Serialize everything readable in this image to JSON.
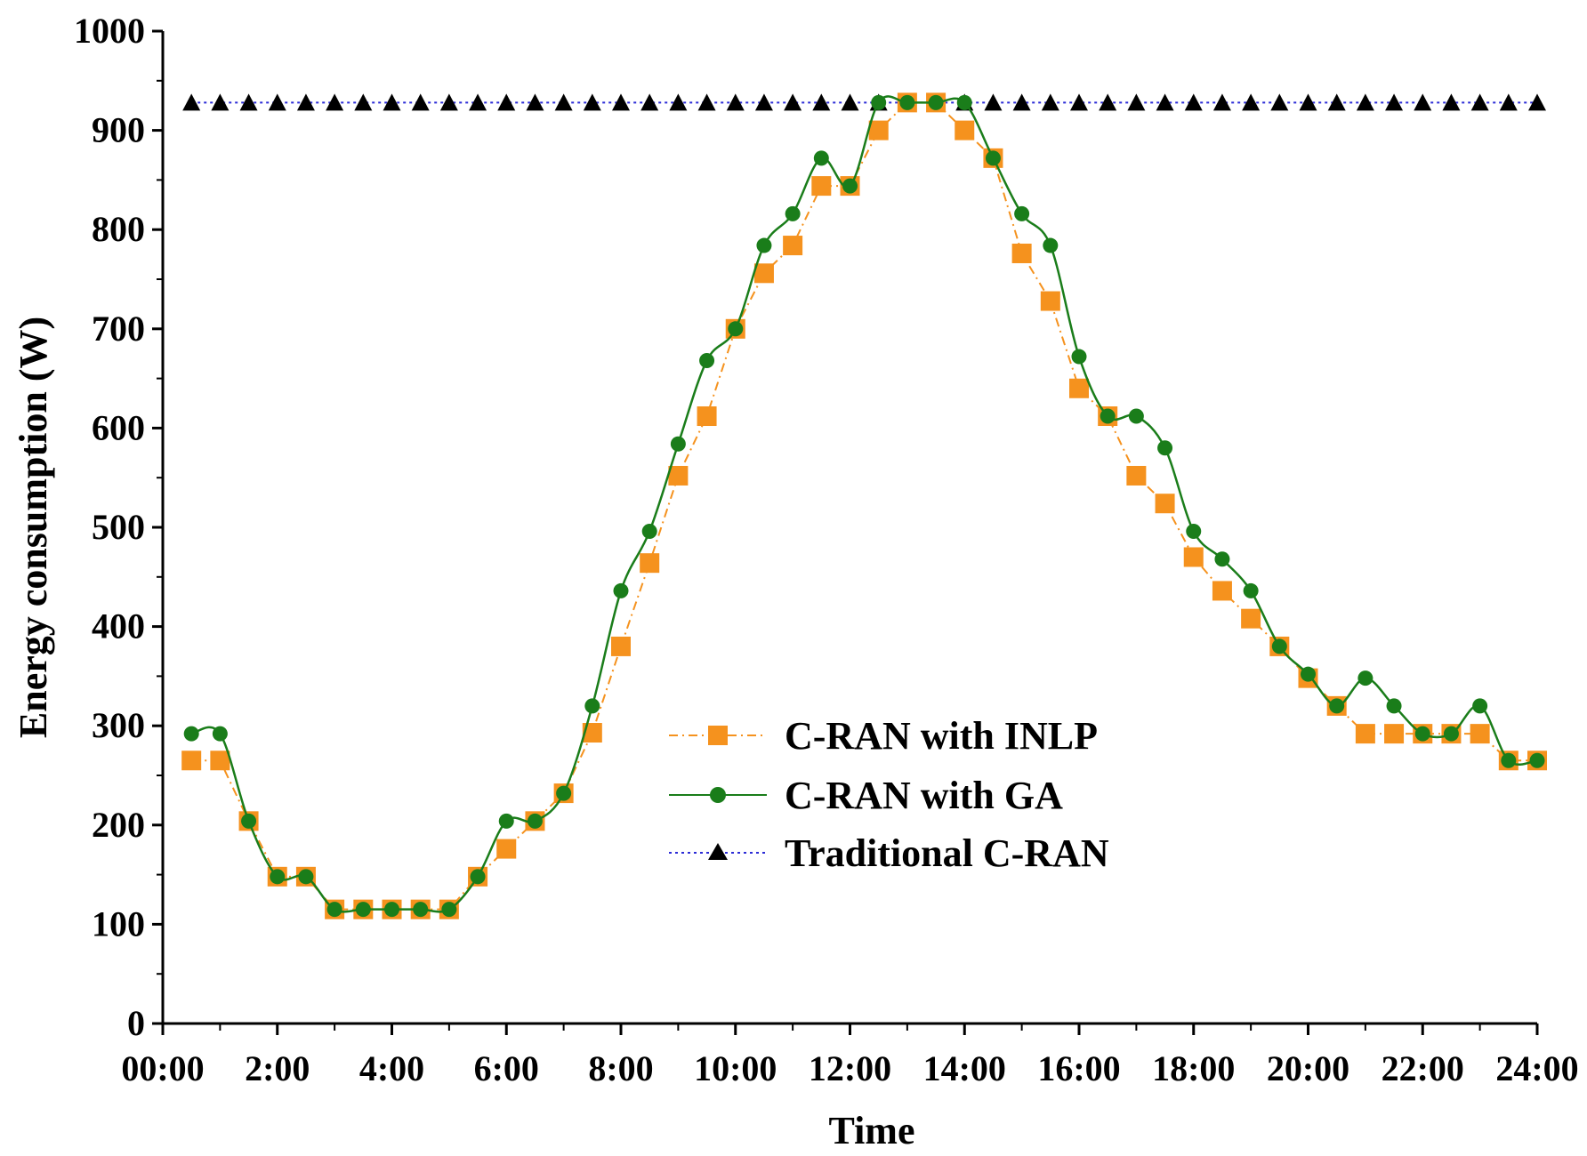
{
  "chart_data": {
    "type": "line",
    "title": "",
    "xlabel": "Time",
    "ylabel": "Energy consumption (W)",
    "xlim": [
      0,
      48
    ],
    "ylim": [
      0,
      1000
    ],
    "xticks": [
      0,
      4,
      8,
      12,
      16,
      20,
      24,
      28,
      32,
      36,
      40,
      44,
      48
    ],
    "xtick_labels": [
      "00:00",
      "2:00",
      "4:00",
      "6:00",
      "8:00",
      "10:00",
      "12:00",
      "14:00",
      "16:00",
      "18:00",
      "20:00",
      "22:00",
      "24:00"
    ],
    "yticks": [
      0,
      100,
      200,
      300,
      400,
      500,
      600,
      700,
      800,
      900,
      1000
    ],
    "ytick_labels": [
      "0",
      "100",
      "200",
      "300",
      "400",
      "500",
      "600",
      "700",
      "800",
      "900",
      "1000"
    ],
    "x": [
      1,
      2,
      3,
      4,
      5,
      6,
      7,
      8,
      9,
      10,
      11,
      12,
      13,
      14,
      15,
      16,
      17,
      18,
      19,
      20,
      21,
      22,
      23,
      24,
      25,
      26,
      27,
      28,
      29,
      30,
      31,
      32,
      33,
      34,
      35,
      36,
      37,
      38,
      39,
      40,
      41,
      42,
      43,
      44,
      45,
      46,
      47,
      48
    ],
    "legend_position": "center",
    "series": [
      {
        "name": "C-RAN with INLP",
        "color": "#f5921e",
        "marker": "square",
        "line_style": "dash-dot",
        "values": [
          265,
          265,
          204,
          148,
          148,
          115,
          115,
          115,
          115,
          115,
          148,
          176,
          204,
          232,
          293,
          380,
          464,
          552,
          612,
          700,
          756,
          784,
          844,
          844,
          900,
          928,
          928,
          900,
          872,
          776,
          728,
          640,
          612,
          552,
          524,
          470,
          436,
          408,
          380,
          348,
          320,
          292,
          292,
          292,
          292,
          292,
          265,
          265
        ]
      },
      {
        "name": "C-RAN with GA",
        "color": "#1a7d1a",
        "marker": "circle",
        "line_style": "solid",
        "values": [
          292,
          292,
          204,
          148,
          148,
          115,
          115,
          115,
          115,
          115,
          148,
          204,
          204,
          232,
          320,
          436,
          496,
          584,
          668,
          700,
          784,
          816,
          872,
          844,
          928,
          928,
          928,
          928,
          872,
          816,
          784,
          672,
          612,
          612,
          580,
          496,
          468,
          436,
          380,
          352,
          320,
          348,
          320,
          292,
          292,
          320,
          265,
          265
        ]
      },
      {
        "name": "Traditional C-RAN",
        "color": "#2b2bd6",
        "marker": "triangle",
        "line_style": "dotted",
        "values": [
          928,
          928,
          928,
          928,
          928,
          928,
          928,
          928,
          928,
          928,
          928,
          928,
          928,
          928,
          928,
          928,
          928,
          928,
          928,
          928,
          928,
          928,
          928,
          928,
          928,
          928,
          928,
          928,
          928,
          928,
          928,
          928,
          928,
          928,
          928,
          928,
          928,
          928,
          928,
          928,
          928,
          928,
          928,
          928,
          928,
          928,
          928,
          928
        ]
      }
    ]
  }
}
